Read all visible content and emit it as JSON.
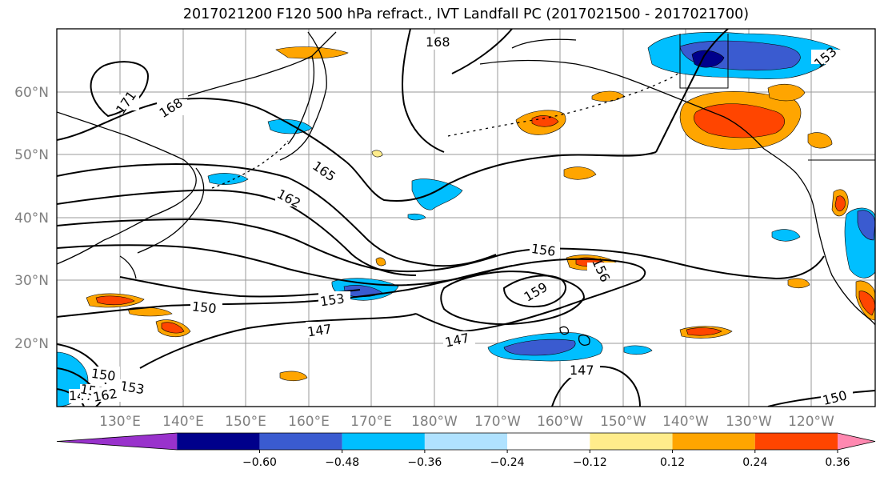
{
  "title": "2017021200 F120 500 hPa refract., IVT Landfall PC (2017021500 - 2017021700)",
  "lat_labels": [
    "60°N",
    "50°N",
    "40°N",
    "30°N",
    "20°N"
  ],
  "lon_labels": [
    "130°E",
    "140°E",
    "150°E",
    "160°E",
    "170°E",
    "180°W",
    "170°W",
    "160°W",
    "150°W",
    "140°W",
    "130°W",
    "120°W"
  ],
  "contour_labels": [
    "171",
    "168",
    "168",
    "165",
    "162",
    "159",
    "156",
    "156",
    "153",
    "153",
    "150",
    "150",
    "150",
    "147",
    "147",
    "147",
    "147",
    "159",
    "162",
    "153"
  ],
  "colorbar": {
    "ticks": [
      "−0.60",
      "−0.48",
      "−0.36",
      "−0.24",
      "−0.12",
      "0.12",
      "0.24",
      "0.36",
      "0.48",
      "0.60"
    ],
    "colors": [
      "#9932cc",
      "#00008b",
      "#3a5bd0",
      "#00bfff",
      "#b0e2ff",
      "#ffffff",
      "#ffec8b",
      "#ffa500",
      "#ff4500",
      "#b22222",
      "#ff88b0"
    ]
  }
}
